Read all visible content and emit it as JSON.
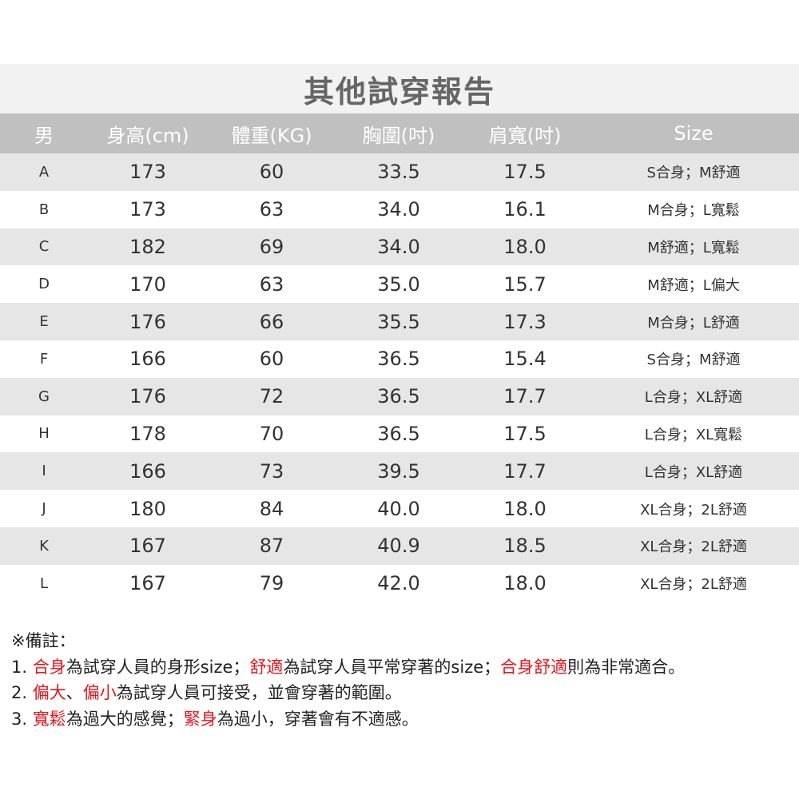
{
  "title": "其他試穿報告",
  "headers": [
    "男",
    "身高(cm)",
    "體重(KG)",
    "胸圍(吋)",
    "肩寬(吋)",
    "Size"
  ],
  "rows": [
    [
      "A",
      "173",
      "60",
      "33.5",
      "17.5",
      "S合身；M舒適"
    ],
    [
      "B",
      "173",
      "63",
      "34.0",
      "16.1",
      "M合身；L寬鬆"
    ],
    [
      "C",
      "182",
      "69",
      "34.0",
      "18.0",
      "M舒適；L寬鬆"
    ],
    [
      "D",
      "170",
      "63",
      "35.0",
      "15.7",
      "M舒適；L偏大"
    ],
    [
      "E",
      "176",
      "66",
      "35.5",
      "17.3",
      "M合身；L舒適"
    ],
    [
      "F",
      "166",
      "60",
      "36.5",
      "15.4",
      "S合身；M舒適"
    ],
    [
      "G",
      "176",
      "72",
      "36.5",
      "17.7",
      "L合身；XL舒適"
    ],
    [
      "H",
      "178",
      "70",
      "36.5",
      "17.5",
      "L合身；XL寬鬆"
    ],
    [
      "I",
      "166",
      "73",
      "39.5",
      "17.7",
      "L合身；XL舒適"
    ],
    [
      "J",
      "180",
      "84",
      "40.0",
      "18.0",
      "XL合身；2L舒適"
    ],
    [
      "K",
      "167",
      "87",
      "40.9",
      "18.5",
      "XL合身；2L舒適"
    ],
    [
      "L",
      "167",
      "79",
      "42.0",
      "18.0",
      "XL合身；2L舒適"
    ]
  ],
  "notes": {
    "heading": "※備註：",
    "lines": [
      [
        {
          "t": "1. ",
          "red": false
        },
        {
          "t": "合身",
          "red": true
        },
        {
          "t": "為試穿人員的身形size；",
          "red": false
        },
        {
          "t": "舒適",
          "red": true
        },
        {
          "t": "為試穿人員平常穿著的size；",
          "red": false
        },
        {
          "t": "合身舒適",
          "red": true
        },
        {
          "t": "則為非常適合。",
          "red": false
        }
      ],
      [
        {
          "t": "2. ",
          "red": false
        },
        {
          "t": "偏大",
          "red": true
        },
        {
          "t": "、",
          "red": false
        },
        {
          "t": "偏小",
          "red": true
        },
        {
          "t": "為試穿人員可接受，並會穿著的範圍。",
          "red": false
        }
      ],
      [
        {
          "t": "3. ",
          "red": false
        },
        {
          "t": "寬鬆",
          "red": true
        },
        {
          "t": "為過大的感覺；",
          "red": false
        },
        {
          "t": "緊身",
          "red": true
        },
        {
          "t": "為過小，穿著會有不適感。",
          "red": false
        }
      ]
    ]
  },
  "colors": {
    "title_bg": "#f2f2f2",
    "header_bg": "#c0c0c0",
    "stripe": "#e6e6e6",
    "highlight": "#e8161b"
  }
}
